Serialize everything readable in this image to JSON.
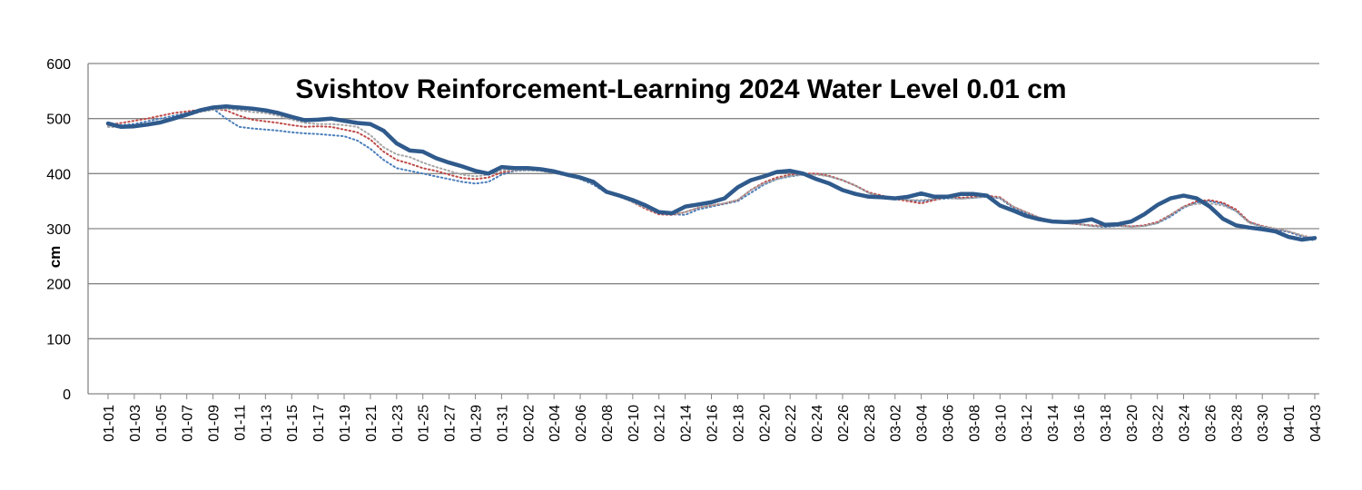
{
  "chart_data": {
    "type": "line",
    "title": "Svishtov Reinforcement-Learning 2024 Water Level 0.01 cm",
    "y_label": "cm",
    "categories": [
      "01-01",
      null,
      "01-03",
      null,
      "01-05",
      null,
      "01-07",
      null,
      "01-09",
      null,
      "01-11",
      null,
      "01-13",
      null,
      "01-15",
      null,
      "01-17",
      null,
      "01-19",
      null,
      "01-21",
      null,
      "01-23",
      null,
      "01-25",
      null,
      "01-27",
      null,
      "01-29",
      null,
      "01-31",
      null,
      "02-02",
      null,
      "02-04",
      null,
      "02-06",
      null,
      "02-08",
      null,
      "02-10",
      null,
      "02-12",
      null,
      "02-14",
      null,
      "02-16",
      null,
      "02-18",
      null,
      "02-20",
      null,
      "02-22",
      null,
      "02-24",
      null,
      "02-26",
      null,
      "02-28",
      null,
      "03-02",
      null,
      "03-04",
      null,
      "03-06",
      null,
      "03-08",
      null,
      "03-10",
      null,
      "03-12",
      null,
      "03-14",
      null,
      "03-16",
      null,
      "03-18",
      null,
      "03-20",
      null,
      "03-22",
      null,
      "03-24",
      null,
      "03-26",
      null,
      "03-28",
      null,
      "03-30",
      null,
      "04-01",
      null,
      "04-03"
    ],
    "series": [
      {
        "color": "#4a7ebb",
        "style": "dotted",
        "values": [
          485,
          488,
          490,
          495,
          500,
          505,
          510,
          515,
          518,
          500,
          485,
          482,
          480,
          478,
          475,
          473,
          472,
          470,
          468,
          460,
          445,
          425,
          410,
          405,
          400,
          395,
          390,
          385,
          382,
          385,
          398,
          405,
          406,
          406,
          403,
          398,
          390,
          380,
          365,
          358,
          350,
          338,
          328,
          326,
          325,
          335,
          340,
          345,
          350,
          365,
          380,
          390,
          395,
          398,
          400,
          395,
          388,
          378,
          365,
          358,
          355,
          352,
          350,
          353,
          355,
          355,
          356,
          358,
          355,
          338,
          328,
          320,
          314,
          310,
          308,
          305,
          303,
          305,
          304,
          305,
          310,
          322,
          338,
          348,
          350,
          345,
          332,
          312,
          303,
          298,
          294,
          286,
          278
        ]
      },
      {
        "color": "#be4b48",
        "style": "dotted",
        "values": [
          488,
          492,
          496,
          500,
          505,
          510,
          513,
          516,
          518,
          515,
          505,
          498,
          495,
          492,
          488,
          485,
          486,
          485,
          480,
          475,
          462,
          440,
          425,
          418,
          410,
          405,
          398,
          392,
          390,
          393,
          402,
          406,
          407,
          407,
          404,
          399,
          392,
          383,
          368,
          360,
          348,
          336,
          326,
          325,
          330,
          338,
          342,
          346,
          352,
          370,
          384,
          393,
          398,
          400,
          400,
          396,
          388,
          378,
          366,
          360,
          354,
          350,
          346,
          352,
          358,
          356,
          358,
          360,
          357,
          340,
          330,
          320,
          314,
          310,
          308,
          306,
          305,
          306,
          304,
          306,
          312,
          325,
          340,
          350,
          352,
          347,
          335,
          312,
          305,
          300,
          295,
          288,
          282
        ]
      },
      {
        "color": "#a6a6a6",
        "style": "dotted",
        "values": [
          485,
          484,
          486,
          488,
          492,
          498,
          505,
          512,
          516,
          518,
          515,
          512,
          510,
          505,
          498,
          492,
          490,
          490,
          488,
          485,
          470,
          448,
          435,
          430,
          420,
          412,
          405,
          398,
          395,
          398,
          406,
          406,
          406,
          405,
          401,
          396,
          390,
          382,
          365,
          358,
          348,
          338,
          328,
          326,
          330,
          338,
          342,
          346,
          352,
          370,
          382,
          390,
          396,
          398,
          398,
          395,
          388,
          378,
          365,
          358,
          355,
          352,
          352,
          354,
          356,
          354,
          356,
          358,
          356,
          340,
          330,
          320,
          313,
          310,
          308,
          305,
          304,
          305,
          303,
          305,
          310,
          325,
          340,
          345,
          346,
          342,
          332,
          310,
          304,
          300,
          295,
          288,
          280
        ]
      },
      {
        "color": "#2f5a8c",
        "style": "solid",
        "values": [
          491,
          485,
          486,
          489,
          493,
          500,
          507,
          515,
          520,
          522,
          520,
          518,
          515,
          510,
          503,
          497,
          498,
          500,
          496,
          492,
          490,
          478,
          455,
          442,
          440,
          428,
          420,
          413,
          405,
          400,
          412,
          410,
          410,
          408,
          404,
          398,
          393,
          385,
          367,
          360,
          352,
          342,
          330,
          328,
          340,
          344,
          348,
          355,
          375,
          388,
          395,
          403,
          405,
          400,
          390,
          382,
          370,
          363,
          358,
          357,
          355,
          358,
          364,
          358,
          358,
          363,
          363,
          360,
          342,
          333,
          323,
          317,
          313,
          312,
          313,
          317,
          307,
          308,
          313,
          326,
          343,
          355,
          360,
          355,
          340,
          318,
          306,
          302,
          299,
          295,
          285,
          280,
          283
        ]
      }
    ],
    "ylim": [
      0,
      600
    ],
    "yticks": [
      0,
      100,
      200,
      300,
      400,
      500,
      600
    ],
    "grid": true
  }
}
